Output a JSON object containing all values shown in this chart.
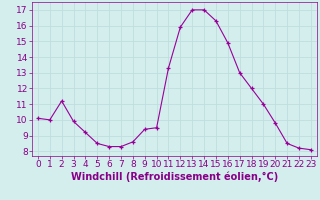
{
  "x": [
    0,
    1,
    2,
    3,
    4,
    5,
    6,
    7,
    8,
    9,
    10,
    11,
    12,
    13,
    14,
    15,
    16,
    17,
    18,
    19,
    20,
    21,
    22,
    23
  ],
  "y": [
    10.1,
    10.0,
    11.2,
    9.9,
    9.2,
    8.5,
    8.3,
    8.3,
    8.6,
    9.4,
    9.5,
    13.3,
    15.9,
    17.0,
    17.0,
    16.3,
    14.9,
    13.0,
    12.0,
    11.0,
    9.8,
    8.5,
    8.2,
    8.1
  ],
  "line_color": "#990099",
  "marker": "+",
  "marker_size": 3,
  "xlabel": "Windchill (Refroidissement éolien,°C)",
  "ylim": [
    7.7,
    17.5
  ],
  "xlim": [
    -0.5,
    23.5
  ],
  "yticks": [
    8,
    9,
    10,
    11,
    12,
    13,
    14,
    15,
    16,
    17
  ],
  "xticks": [
    0,
    1,
    2,
    3,
    4,
    5,
    6,
    7,
    8,
    9,
    10,
    11,
    12,
    13,
    14,
    15,
    16,
    17,
    18,
    19,
    20,
    21,
    22,
    23
  ],
  "bg_color": "#d4eeee",
  "grid_color": "#c0dede",
  "tick_color": "#880088",
  "label_color": "#880088",
  "tick_fontsize": 6.5,
  "label_fontsize": 7
}
